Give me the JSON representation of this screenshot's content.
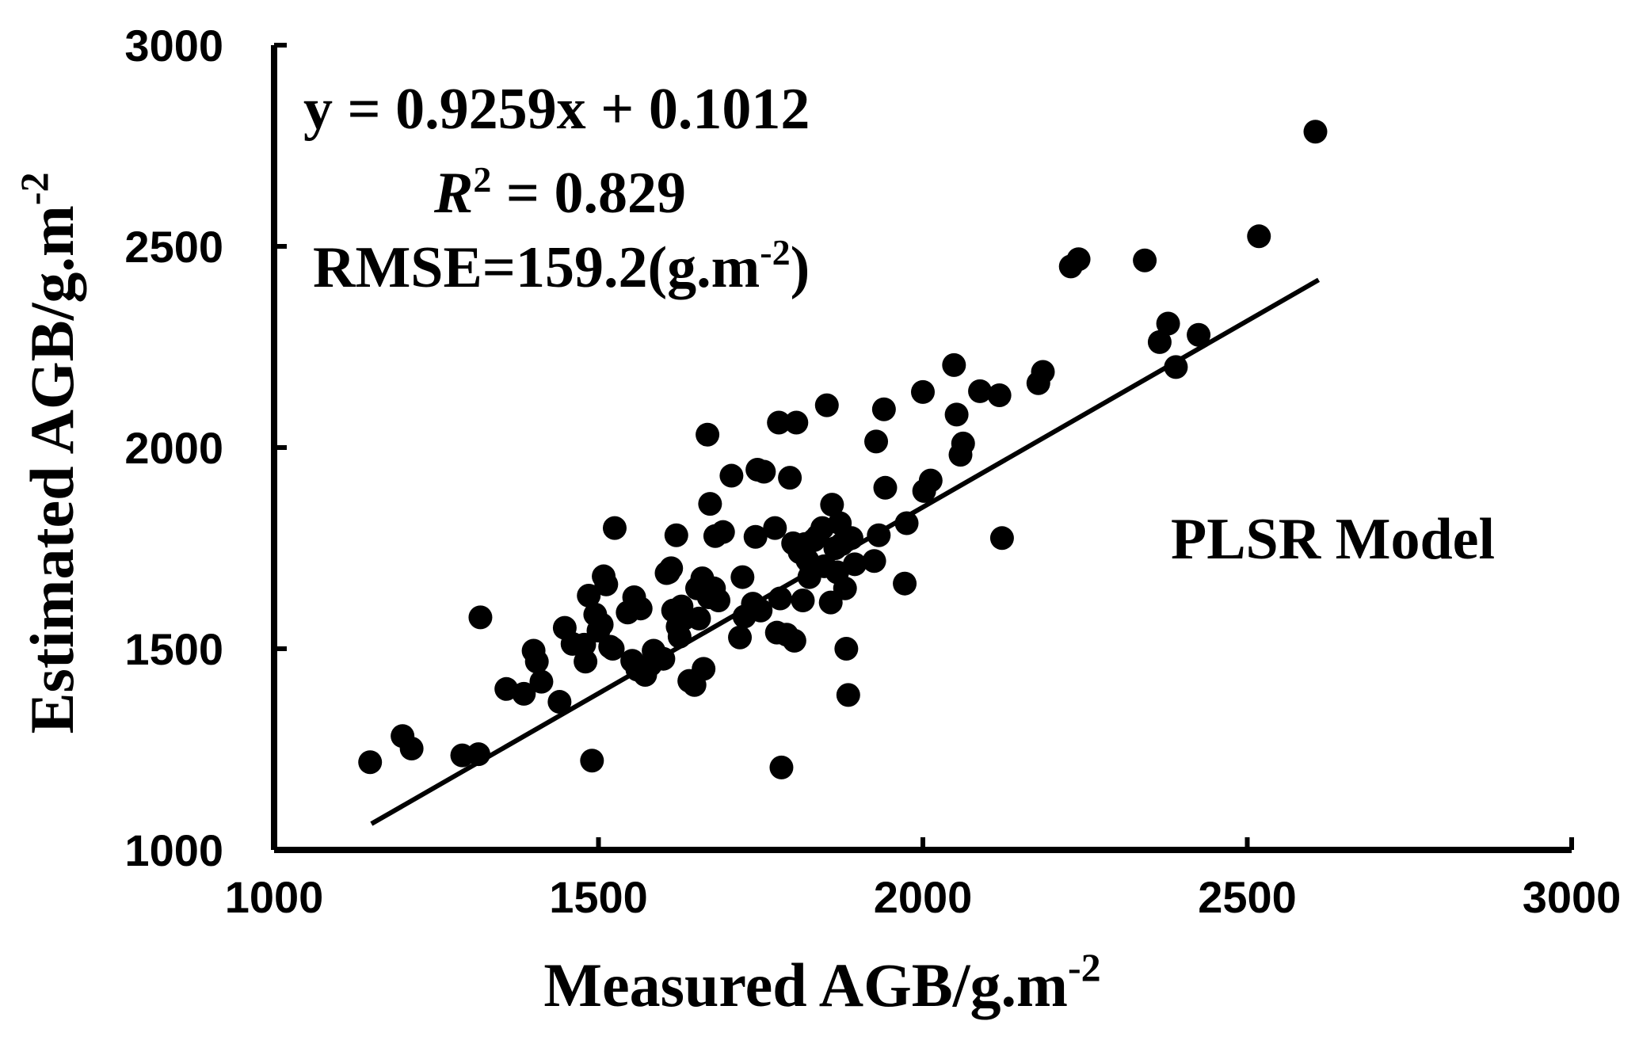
{
  "chart_data": {
    "type": "scatter",
    "xlabel": "Measured AGB/g.m",
    "xlabel_sup": "-2",
    "ylabel": "Estimated AGB/g.m",
    "ylabel_sup": "-2",
    "xlim": [
      1000,
      3000
    ],
    "ylim": [
      1000,
      3000
    ],
    "xticks": [
      1000,
      1500,
      2000,
      2500,
      3000
    ],
    "yticks": [
      1000,
      1500,
      2000,
      2500,
      3000
    ],
    "xtick_labels": [
      "1000",
      "1500",
      "2000",
      "2500",
      "3000"
    ],
    "ytick_labels": [
      "1000",
      "1500",
      "2000",
      "2500",
      "3000"
    ],
    "grid": false,
    "legend": "none",
    "annotations": {
      "equation": "y = 0.9259x + 0.1012",
      "r2_symbol": "R",
      "r2_sup": "2",
      "r2_value": " = 0.829",
      "rmse": "RMSE=159.2(g.m",
      "rmse_sup": "-2",
      "rmse_close": ")",
      "model": "PLSR Model"
    },
    "fit_line": {
      "slope": 0.9259,
      "intercept": 0.1012,
      "x_range": [
        1150,
        2610
      ]
    },
    "colors": {
      "points": "#000000",
      "axes": "#000000",
      "line": "#000000"
    },
    "series": [
      {
        "points": [
          [
            1148,
            1218
          ],
          [
            1198,
            1283
          ],
          [
            1212,
            1252
          ],
          [
            1290,
            1235
          ],
          [
            1315,
            1238
          ],
          [
            1318,
            1578
          ],
          [
            1358,
            1400
          ],
          [
            1385,
            1388
          ],
          [
            1400,
            1495
          ],
          [
            1405,
            1468
          ],
          [
            1412,
            1418
          ],
          [
            1440,
            1368
          ],
          [
            1448,
            1552
          ],
          [
            1460,
            1512
          ],
          [
            1478,
            1510
          ],
          [
            1480,
            1468
          ],
          [
            1485,
            1632
          ],
          [
            1490,
            1222
          ],
          [
            1495,
            1585
          ],
          [
            1500,
            1545
          ],
          [
            1505,
            1560
          ],
          [
            1508,
            1680
          ],
          [
            1512,
            1660
          ],
          [
            1518,
            1505
          ],
          [
            1522,
            1500
          ],
          [
            1525,
            1800
          ],
          [
            1545,
            1590
          ],
          [
            1552,
            1470
          ],
          [
            1555,
            1628
          ],
          [
            1560,
            1448
          ],
          [
            1565,
            1600
          ],
          [
            1572,
            1435
          ],
          [
            1580,
            1460
          ],
          [
            1585,
            1495
          ],
          [
            1592,
            1480
          ],
          [
            1600,
            1475
          ],
          [
            1605,
            1688
          ],
          [
            1608,
            1690
          ],
          [
            1612,
            1700
          ],
          [
            1615,
            1595
          ],
          [
            1620,
            1782
          ],
          [
            1622,
            1555
          ],
          [
            1625,
            1530
          ],
          [
            1628,
            1605
          ],
          [
            1632,
            1575
          ],
          [
            1640,
            1420
          ],
          [
            1648,
            1410
          ],
          [
            1652,
            1650
          ],
          [
            1655,
            1575
          ],
          [
            1660,
            1675
          ],
          [
            1662,
            1450
          ],
          [
            1668,
            2032
          ],
          [
            1670,
            1628
          ],
          [
            1672,
            1860
          ],
          [
            1678,
            1650
          ],
          [
            1680,
            1780
          ],
          [
            1685,
            1620
          ],
          [
            1692,
            1790
          ],
          [
            1705,
            1930
          ],
          [
            1718,
            1528
          ],
          [
            1722,
            1678
          ],
          [
            1725,
            1580
          ],
          [
            1738,
            1612
          ],
          [
            1742,
            1778
          ],
          [
            1745,
            1945
          ],
          [
            1750,
            1595
          ],
          [
            1755,
            1940
          ],
          [
            1772,
            1800
          ],
          [
            1775,
            1540
          ],
          [
            1778,
            2062
          ],
          [
            1780,
            1625
          ],
          [
            1782,
            1205
          ],
          [
            1790,
            1535
          ],
          [
            1795,
            1925
          ],
          [
            1800,
            1762
          ],
          [
            1802,
            1520
          ],
          [
            1805,
            2062
          ],
          [
            1810,
            1740
          ],
          [
            1815,
            1620
          ],
          [
            1818,
            1760
          ],
          [
            1822,
            1720
          ],
          [
            1825,
            1678
          ],
          [
            1828,
            1702
          ],
          [
            1832,
            1770
          ],
          [
            1838,
            1780
          ],
          [
            1845,
            1800
          ],
          [
            1848,
            1705
          ],
          [
            1852,
            2105
          ],
          [
            1858,
            1615
          ],
          [
            1860,
            1858
          ],
          [
            1865,
            1750
          ],
          [
            1868,
            1690
          ],
          [
            1872,
            1812
          ],
          [
            1875,
            1760
          ],
          [
            1880,
            1650
          ],
          [
            1882,
            1500
          ],
          [
            1885,
            1385
          ],
          [
            1890,
            1775
          ],
          [
            1895,
            1710
          ],
          [
            1925,
            1718
          ],
          [
            1928,
            2015
          ],
          [
            1932,
            1782
          ],
          [
            1940,
            2095
          ],
          [
            1942,
            1900
          ],
          [
            1972,
            1662
          ],
          [
            1975,
            1812
          ],
          [
            2000,
            2138
          ],
          [
            2002,
            1892
          ],
          [
            2012,
            1918
          ],
          [
            2048,
            2205
          ],
          [
            2052,
            2082
          ],
          [
            2058,
            1982
          ],
          [
            2062,
            2010
          ],
          [
            2088,
            2140
          ],
          [
            2118,
            2130
          ],
          [
            2122,
            1775
          ],
          [
            2178,
            2160
          ],
          [
            2185,
            2188
          ],
          [
            2228,
            2450
          ],
          [
            2240,
            2468
          ],
          [
            2342,
            2465
          ],
          [
            2365,
            2262
          ],
          [
            2378,
            2308
          ],
          [
            2390,
            2200
          ],
          [
            2425,
            2280
          ],
          [
            2518,
            2525
          ],
          [
            2605,
            2785
          ]
        ]
      }
    ]
  }
}
